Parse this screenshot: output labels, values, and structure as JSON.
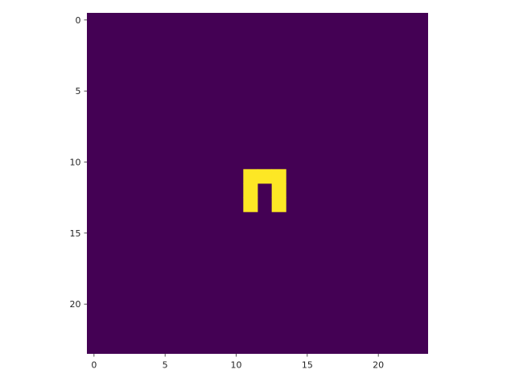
{
  "chart_data": {
    "type": "heatmap",
    "title": "",
    "xlabel": "",
    "ylabel": "",
    "grid": false,
    "colormap": "viridis",
    "colors": {
      "background_cell": "#440154",
      "active_cell": "#fde725"
    },
    "shape": [
      24,
      24
    ],
    "background_value": 0,
    "active_value": 1,
    "active_cells": [
      {
        "row": 11,
        "col": 11
      },
      {
        "row": 11,
        "col": 12
      },
      {
        "row": 11,
        "col": 13
      },
      {
        "row": 12,
        "col": 11
      },
      {
        "row": 12,
        "col": 13
      },
      {
        "row": 13,
        "col": 11
      },
      {
        "row": 13,
        "col": 13
      }
    ],
    "xlim": [
      -0.5,
      23.5
    ],
    "ylim": [
      23.5,
      -0.5
    ],
    "xticks": [
      0,
      5,
      10,
      15,
      20
    ],
    "yticks": [
      0,
      5,
      10,
      15,
      20
    ],
    "xtick_labels": [
      "0",
      "5",
      "10",
      "15",
      "20"
    ],
    "ytick_labels": [
      "0",
      "5",
      "10",
      "15",
      "20"
    ]
  }
}
